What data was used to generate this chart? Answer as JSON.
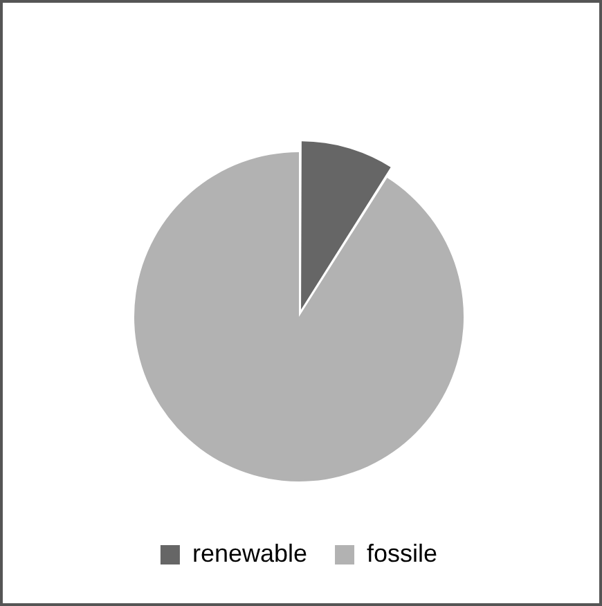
{
  "chart_data": {
    "type": "pie",
    "categories": [
      "renewable",
      "fossile"
    ],
    "values": [
      9,
      91
    ],
    "colors": [
      "#666666",
      "#b2b2b2"
    ],
    "legend": "bottom"
  }
}
